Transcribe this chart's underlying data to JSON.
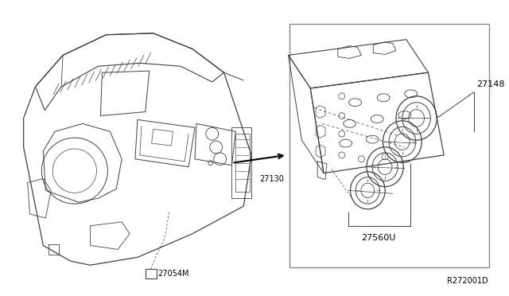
{
  "bg_color": "#ffffff",
  "line_color": "#404040",
  "text_color": "#000000",
  "ref_code": "R272001D",
  "labels": {
    "part1": "27054M",
    "part2": "27130",
    "part3": "27148",
    "part4": "27560U"
  },
  "figsize": [
    6.4,
    3.72
  ],
  "dpi": 100
}
